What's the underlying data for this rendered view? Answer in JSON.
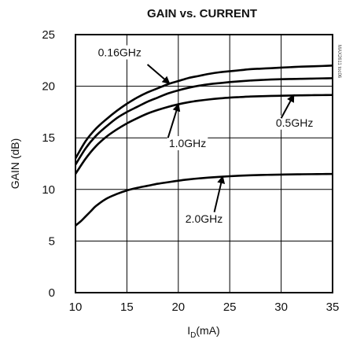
{
  "chart_data": {
    "type": "line",
    "title": "GAIN vs. CURRENT",
    "ylabel": "GAIN (dB)",
    "xlabel_main": "I",
    "xlabel_sub": "D",
    "xlabel_unit": "(mA)",
    "xlim": [
      10,
      35
    ],
    "ylim": [
      0,
      25
    ],
    "xticks": [
      10,
      15,
      20,
      25,
      30,
      35
    ],
    "yticks": [
      0,
      5,
      10,
      15,
      20,
      25
    ],
    "grid": true,
    "part_code": "MAX2611 toc06",
    "series": [
      {
        "name": "0.16GHz",
        "x": [
          10,
          11,
          12,
          13,
          14,
          15,
          16,
          17,
          18,
          19,
          20,
          21,
          22,
          23,
          24,
          25,
          26,
          27,
          28,
          29,
          30,
          31,
          32,
          33,
          34,
          35
        ],
        "y": [
          13.0,
          14.7,
          15.9,
          16.8,
          17.6,
          18.3,
          18.9,
          19.4,
          19.8,
          20.2,
          20.5,
          20.8,
          21.0,
          21.2,
          21.35,
          21.45,
          21.55,
          21.65,
          21.7,
          21.75,
          21.8,
          21.85,
          21.9,
          21.93,
          21.96,
          22.0
        ]
      },
      {
        "name": "0.5GHz",
        "x": [
          10,
          11,
          12,
          13,
          14,
          15,
          16,
          17,
          18,
          19,
          20,
          21,
          22,
          23,
          24,
          25,
          26,
          27,
          28,
          29,
          30,
          31,
          32,
          33,
          34,
          35
        ],
        "y": [
          12.4,
          14.0,
          15.2,
          16.1,
          16.9,
          17.5,
          18.0,
          18.5,
          18.9,
          19.3,
          19.6,
          19.85,
          20.05,
          20.2,
          20.3,
          20.4,
          20.48,
          20.55,
          20.6,
          20.65,
          20.68,
          20.7,
          20.72,
          20.74,
          20.76,
          20.78
        ]
      },
      {
        "name": "1.0GHz",
        "x": [
          10,
          11,
          12,
          13,
          14,
          15,
          16,
          17,
          18,
          19,
          20,
          21,
          22,
          23,
          24,
          25,
          26,
          27,
          28,
          29,
          30,
          31,
          32,
          33,
          34,
          35
        ],
        "y": [
          11.5,
          13.0,
          14.2,
          15.1,
          15.8,
          16.4,
          16.9,
          17.35,
          17.7,
          18.0,
          18.25,
          18.45,
          18.6,
          18.72,
          18.82,
          18.9,
          18.95,
          19.0,
          19.03,
          19.06,
          19.08,
          19.1,
          19.12,
          19.13,
          19.14,
          19.15
        ]
      },
      {
        "name": "2.0GHz",
        "x": [
          10,
          10.5,
          11,
          11.5,
          12,
          13,
          14,
          15,
          16,
          17,
          18,
          19,
          20,
          21,
          22,
          23,
          24,
          25,
          26,
          27,
          28,
          29,
          30,
          31,
          32,
          33,
          34,
          35
        ],
        "y": [
          6.5,
          6.9,
          7.4,
          7.9,
          8.4,
          9.1,
          9.55,
          9.9,
          10.15,
          10.35,
          10.55,
          10.7,
          10.85,
          10.97,
          11.07,
          11.15,
          11.22,
          11.28,
          11.33,
          11.37,
          11.4,
          11.42,
          11.44,
          11.46,
          11.47,
          11.48,
          11.49,
          11.5
        ]
      }
    ],
    "annotations": [
      {
        "series": "0.16GHz",
        "text": "0.16GHz",
        "label_x": 14.3,
        "label_y": 22.9,
        "arrow_from": [
          17.0,
          22.1
        ],
        "arrow_to": [
          19.1,
          20.3
        ]
      },
      {
        "series": "0.5GHz",
        "text": "0.5GHz",
        "label_x": 31.3,
        "label_y": 16.1,
        "arrow_from": [
          30.0,
          16.9
        ],
        "arrow_to": [
          31.2,
          19.1
        ]
      },
      {
        "series": "1.0GHz",
        "text": "1.0GHz",
        "label_x": 20.9,
        "label_y": 14.1,
        "arrow_from": [
          19.0,
          15.0
        ],
        "arrow_to": [
          20.0,
          18.2
        ]
      },
      {
        "series": "2.0GHz",
        "text": "2.0GHz",
        "label_x": 22.5,
        "label_y": 6.8,
        "arrow_from": [
          23.5,
          7.8
        ],
        "arrow_to": [
          24.3,
          11.2
        ]
      }
    ]
  }
}
